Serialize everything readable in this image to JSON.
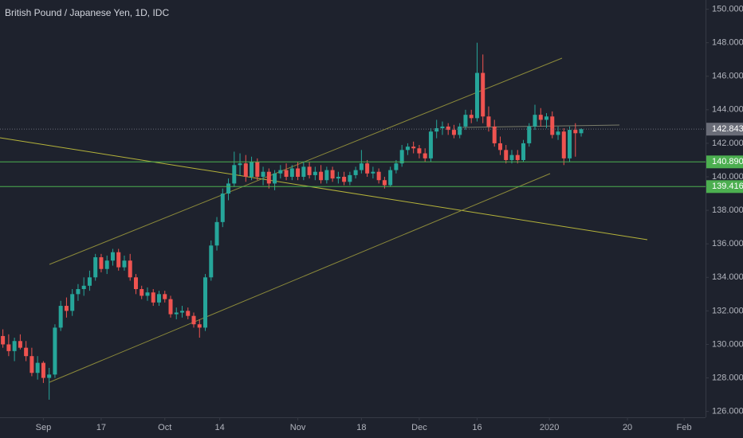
{
  "chart_data": {
    "type": "candlestick",
    "title": "British Pound / Japanese Yen, 1D, IDC",
    "open": [
      130.5,
      130.0,
      129.6,
      130.2,
      129.8,
      129.3,
      128.3,
      128.9,
      128.0,
      128.2,
      131.0,
      132.3,
      132.0,
      133.0,
      133.3,
      133.5,
      134.0,
      135.2,
      134.5,
      135.0,
      135.5,
      134.6,
      135.0,
      134.0,
      133.3,
      132.9,
      133.1,
      132.5,
      133.0,
      132.7,
      131.8,
      131.9,
      132.0,
      131.7,
      131.2,
      131.0,
      134.0,
      135.9,
      137.3,
      139.0,
      139.6,
      140.7,
      140.8,
      140.0,
      140.9,
      140.0,
      140.3,
      139.6,
      140.2,
      140.4,
      140.0,
      140.5,
      140.0,
      140.6,
      140.1,
      140.3,
      139.8,
      140.4,
      139.9,
      140.0,
      139.7,
      140.1,
      140.4,
      140.8,
      140.2,
      140.3,
      139.8,
      139.5,
      140.4,
      140.8,
      141.6,
      141.8,
      141.7,
      141.4,
      141.1,
      142.7,
      142.9,
      143.0,
      142.8,
      142.5,
      143.0,
      143.7,
      143.5,
      146.2,
      143.6,
      143.0,
      142.0,
      141.6,
      141.0,
      141.3,
      141.0,
      142.0,
      143.0,
      143.7,
      143.4,
      143.6,
      142.5,
      142.7,
      141.1,
      142.8,
      142.6
    ],
    "high": [
      130.9,
      130.6,
      130.4,
      130.6,
      130.2,
      129.8,
      129.3,
      129.0,
      128.6,
      131.2,
      132.6,
      132.8,
      133.3,
      133.6,
      134.0,
      134.4,
      135.4,
      135.4,
      135.3,
      135.7,
      135.7,
      135.3,
      135.4,
      134.2,
      133.5,
      133.4,
      133.3,
      133.2,
      133.2,
      132.9,
      132.2,
      132.3,
      132.2,
      131.9,
      131.5,
      134.2,
      136.2,
      137.6,
      139.3,
      139.9,
      141.5,
      141.4,
      141.3,
      141.2,
      141.1,
      140.6,
      140.5,
      140.4,
      140.7,
      140.8,
      140.7,
      140.9,
      140.9,
      140.9,
      140.6,
      140.7,
      140.6,
      140.6,
      140.3,
      140.3,
      140.3,
      140.6,
      141.6,
      141.0,
      140.6,
      140.5,
      140.0,
      140.6,
      141.0,
      141.9,
      142.0,
      142.1,
      141.9,
      141.7,
      142.9,
      143.4,
      143.3,
      143.2,
      143.1,
      143.2,
      144.0,
      144.0,
      148.0,
      147.3,
      144.2,
      143.4,
      142.4,
      141.9,
      141.6,
      141.6,
      142.2,
      143.2,
      144.3,
      144.1,
      143.8,
      143.9,
      143.0,
      142.9,
      143.0,
      143.2,
      142.9
    ],
    "low": [
      129.8,
      129.3,
      129.0,
      129.7,
      129.0,
      128.1,
      127.9,
      127.7,
      126.7,
      128.0,
      130.8,
      131.6,
      131.7,
      132.6,
      132.9,
      133.2,
      133.8,
      134.3,
      134.2,
      134.7,
      134.4,
      134.4,
      133.8,
      133.0,
      132.7,
      132.6,
      132.3,
      132.3,
      132.5,
      131.6,
      131.5,
      131.6,
      131.5,
      131.0,
      130.4,
      130.8,
      133.8,
      135.6,
      137.0,
      138.6,
      139.4,
      140.1,
      139.7,
      139.8,
      139.8,
      139.5,
      139.3,
      139.2,
      139.9,
      139.8,
      139.8,
      139.8,
      139.8,
      139.9,
      139.8,
      139.6,
      139.6,
      139.7,
      139.6,
      139.5,
      139.5,
      139.9,
      140.2,
      140.0,
      139.9,
      139.6,
      139.3,
      139.4,
      140.2,
      140.6,
      141.3,
      141.4,
      141.1,
      140.9,
      140.9,
      142.3,
      142.5,
      142.5,
      142.3,
      142.3,
      142.8,
      143.2,
      143.3,
      143.2,
      142.7,
      141.8,
      141.3,
      140.8,
      140.8,
      140.8,
      140.9,
      141.8,
      142.8,
      143.0,
      142.9,
      142.3,
      142.2,
      140.7,
      140.9,
      141.2,
      142.4
    ],
    "close": [
      130.0,
      129.6,
      130.2,
      129.8,
      129.3,
      128.3,
      128.9,
      128.0,
      128.2,
      131.0,
      132.3,
      132.0,
      133.0,
      133.3,
      133.5,
      134.0,
      135.2,
      134.5,
      135.0,
      135.5,
      134.6,
      135.0,
      134.0,
      133.3,
      132.9,
      133.1,
      132.5,
      133.0,
      132.7,
      131.8,
      131.9,
      132.0,
      131.7,
      131.2,
      131.0,
      134.0,
      135.9,
      137.3,
      139.0,
      139.6,
      140.7,
      140.8,
      140.0,
      140.9,
      140.0,
      140.3,
      139.6,
      140.2,
      140.4,
      140.0,
      140.5,
      140.0,
      140.6,
      140.1,
      140.3,
      139.8,
      140.4,
      139.9,
      140.0,
      139.7,
      140.1,
      140.4,
      140.8,
      140.2,
      140.3,
      139.8,
      139.5,
      140.4,
      140.8,
      141.6,
      141.8,
      141.7,
      141.4,
      141.1,
      142.7,
      142.9,
      143.0,
      142.8,
      142.5,
      143.0,
      143.7,
      143.5,
      146.2,
      143.6,
      143.0,
      142.0,
      141.6,
      141.0,
      141.3,
      141.0,
      142.0,
      143.0,
      143.7,
      143.4,
      143.6,
      142.5,
      142.7,
      141.1,
      142.8,
      142.6,
      142.843
    ],
    "up_color": "#26a69a",
    "down_color": "#ef5350",
    "xlim": [
      -0.5,
      121.5
    ],
    "xticks": [
      {
        "value": 7,
        "label": "Sep"
      },
      17,
      {
        "value": 28,
        "label": "Oct"
      },
      {
        "value": 37.5,
        "label": "14"
      },
      {
        "value": 51,
        "label": "Nov"
      },
      {
        "value": 62,
        "label": "18"
      },
      {
        "value": 72,
        "label": "Dec"
      },
      {
        "value": 82,
        "label": "16"
      },
      {
        "value": 94.5,
        "label": "2020"
      },
      {
        "value": 108,
        "label": "20"
      },
      {
        "value": 117.8,
        "label": "Feb"
      }
    ],
    "ylim": [
      125.65,
      150.55
    ],
    "yticks": [
      {
        "value": 126,
        "label": "126.000"
      },
      {
        "value": 128,
        "label": "128.000"
      },
      {
        "value": 130,
        "label": "130.000"
      },
      {
        "value": 132,
        "label": "132.000"
      },
      {
        "value": 134,
        "label": "134.000"
      },
      {
        "value": 136,
        "label": "136.000"
      },
      {
        "value": 138,
        "label": "138.000"
      },
      {
        "value": 140,
        "label": "140.000"
      },
      {
        "value": 142,
        "label": "142.000"
      },
      {
        "value": 144,
        "label": "144.000"
      },
      {
        "value": 146,
        "label": "146.000"
      },
      {
        "value": 148,
        "label": "148.000"
      },
      {
        "value": 150,
        "label": "150.000"
      }
    ],
    "price_lines": [
      {
        "value": 142.843,
        "label": "142.843",
        "color": "#6a6d78",
        "dashed": true
      },
      {
        "value": 140.89,
        "label": "140.890",
        "color": "#4caf50",
        "dashed": false
      },
      {
        "value": 139.416,
        "label": "139.416",
        "color": "#4caf50",
        "dashed": false
      }
    ],
    "grid": false
  }
}
